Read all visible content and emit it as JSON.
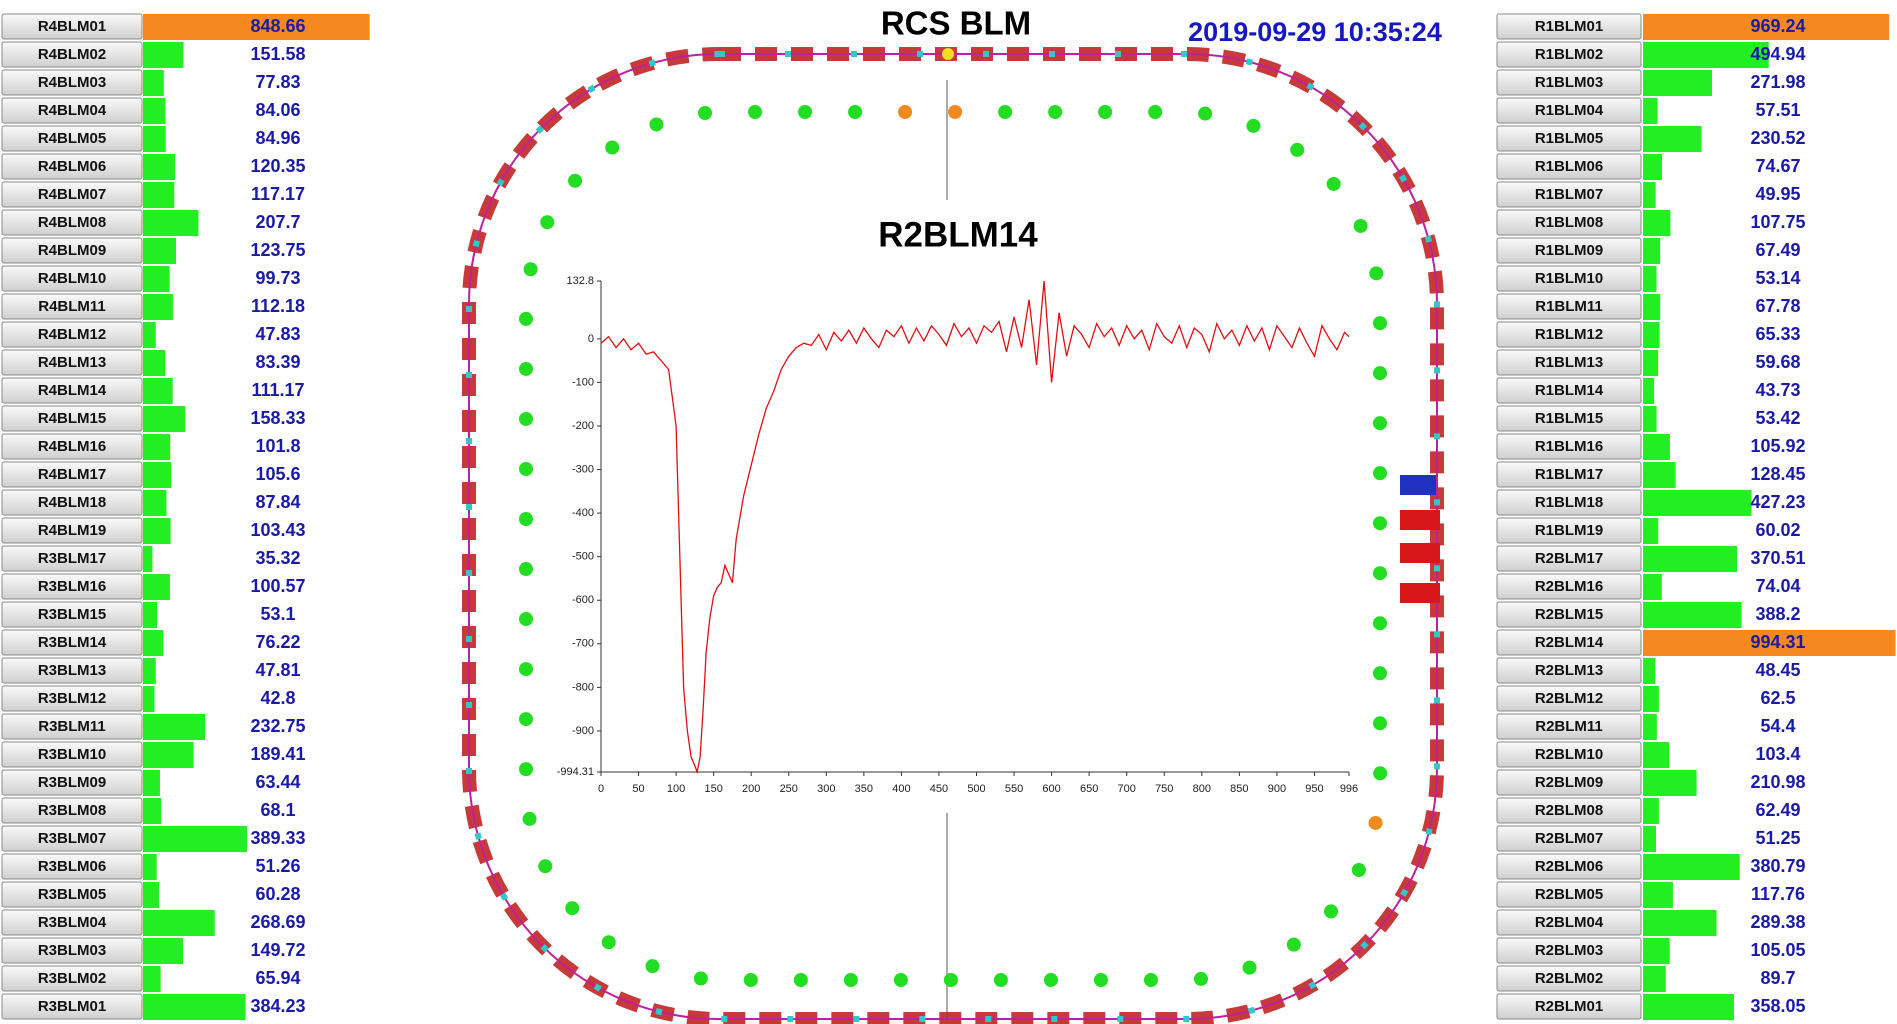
{
  "title": "RCS BLM",
  "timestamp": "2019-09-29 10:35:24",
  "panels": [
    {
      "xlim": [
        0,
        850
      ],
      "bar_color": "#22ee22",
      "alarm_color": "#f5891f",
      "alarm_rows": [
        0
      ],
      "rows": [
        {
          "name": "R4BLM01",
          "value": 848.66
        },
        {
          "name": "R4BLM02",
          "value": 151.58
        },
        {
          "name": "R4BLM03",
          "value": 77.83
        },
        {
          "name": "R4BLM04",
          "value": 84.06
        },
        {
          "name": "R4BLM05",
          "value": 84.96
        },
        {
          "name": "R4BLM06",
          "value": 120.35
        },
        {
          "name": "R4BLM07",
          "value": 117.17
        },
        {
          "name": "R4BLM08",
          "value": 207.7
        },
        {
          "name": "R4BLM09",
          "value": 123.75
        },
        {
          "name": "R4BLM10",
          "value": 99.73
        },
        {
          "name": "R4BLM11",
          "value": 112.18
        },
        {
          "name": "R4BLM12",
          "value": 47.83
        },
        {
          "name": "R4BLM13",
          "value": 83.39
        },
        {
          "name": "R4BLM14",
          "value": 111.17
        },
        {
          "name": "R4BLM15",
          "value": 158.33
        },
        {
          "name": "R4BLM16",
          "value": 101.8
        },
        {
          "name": "R4BLM17",
          "value": 105.6
        },
        {
          "name": "R4BLM18",
          "value": 87.84
        },
        {
          "name": "R4BLM19",
          "value": 103.43
        },
        {
          "name": "R3BLM17",
          "value": 35.32
        },
        {
          "name": "R3BLM16",
          "value": 100.57
        },
        {
          "name": "R3BLM15",
          "value": 53.1
        },
        {
          "name": "R3BLM14",
          "value": 76.22
        },
        {
          "name": "R3BLM13",
          "value": 47.81
        },
        {
          "name": "R3BLM12",
          "value": 42.8
        },
        {
          "name": "R3BLM11",
          "value": 232.75
        },
        {
          "name": "R3BLM10",
          "value": 189.41
        },
        {
          "name": "R3BLM09",
          "value": 63.44
        },
        {
          "name": "R3BLM08",
          "value": 68.1
        },
        {
          "name": "R3BLM07",
          "value": 389.33
        },
        {
          "name": "R3BLM06",
          "value": 51.26
        },
        {
          "name": "R3BLM05",
          "value": 60.28
        },
        {
          "name": "R3BLM04",
          "value": 268.69
        },
        {
          "name": "R3BLM03",
          "value": 149.72
        },
        {
          "name": "R3BLM02",
          "value": 65.94
        },
        {
          "name": "R3BLM01",
          "value": 384.23
        }
      ]
    },
    {
      "xlim": [
        0,
        1000
      ],
      "bar_color": "#22ee22",
      "alarm_color": "#f5891f",
      "alarm_rows": [
        0,
        22
      ],
      "rows": [
        {
          "name": "R1BLM01",
          "value": 969.24
        },
        {
          "name": "R1BLM02",
          "value": 494.94
        },
        {
          "name": "R1BLM03",
          "value": 271.98
        },
        {
          "name": "R1BLM04",
          "value": 57.51
        },
        {
          "name": "R1BLM05",
          "value": 230.52
        },
        {
          "name": "R1BLM06",
          "value": 74.67
        },
        {
          "name": "R1BLM07",
          "value": 49.95
        },
        {
          "name": "R1BLM08",
          "value": 107.75
        },
        {
          "name": "R1BLM09",
          "value": 67.49
        },
        {
          "name": "R1BLM10",
          "value": 53.14
        },
        {
          "name": "R1BLM11",
          "value": 67.78
        },
        {
          "name": "R1BLM12",
          "value": 65.33
        },
        {
          "name": "R1BLM13",
          "value": 59.68
        },
        {
          "name": "R1BLM14",
          "value": 43.73
        },
        {
          "name": "R1BLM15",
          "value": 53.42
        },
        {
          "name": "R1BLM16",
          "value": 105.92
        },
        {
          "name": "R1BLM17",
          "value": 128.45
        },
        {
          "name": "R1BLM18",
          "value": 427.23
        },
        {
          "name": "R1BLM19",
          "value": 60.02
        },
        {
          "name": "R2BLM17",
          "value": 370.51
        },
        {
          "name": "R2BLM16",
          "value": 74.04
        },
        {
          "name": "R2BLM15",
          "value": 388.2
        },
        {
          "name": "R2BLM14",
          "value": 994.31
        },
        {
          "name": "R2BLM13",
          "value": 48.45
        },
        {
          "name": "R2BLM12",
          "value": 62.5
        },
        {
          "name": "R2BLM11",
          "value": 54.4
        },
        {
          "name": "R2BLM10",
          "value": 103.4
        },
        {
          "name": "R2BLM09",
          "value": 210.98
        },
        {
          "name": "R2BLM08",
          "value": 62.49
        },
        {
          "name": "R2BLM07",
          "value": 51.25
        },
        {
          "name": "R2BLM06",
          "value": 380.79
        },
        {
          "name": "R2BLM05",
          "value": 117.76
        },
        {
          "name": "R2BLM04",
          "value": 289.38
        },
        {
          "name": "R2BLM03",
          "value": 105.05
        },
        {
          "name": "R2BLM02",
          "value": 89.7
        },
        {
          "name": "R2BLM01",
          "value": 358.05
        }
      ]
    }
  ],
  "chart_data": {
    "type": "line",
    "title": "R2BLM14",
    "x": [
      0,
      10,
      20,
      30,
      40,
      50,
      60,
      70,
      80,
      90,
      100,
      105,
      110,
      115,
      120,
      125,
      128,
      132,
      136,
      140,
      145,
      150,
      155,
      160,
      165,
      170,
      175,
      180,
      190,
      200,
      210,
      220,
      230,
      240,
      250,
      260,
      270,
      280,
      290,
      300,
      310,
      320,
      330,
      340,
      350,
      360,
      370,
      380,
      390,
      400,
      410,
      420,
      430,
      440,
      450,
      460,
      470,
      480,
      490,
      500,
      510,
      520,
      530,
      540,
      550,
      560,
      570,
      580,
      590,
      600,
      610,
      620,
      630,
      640,
      650,
      660,
      670,
      680,
      690,
      700,
      710,
      720,
      730,
      740,
      750,
      760,
      770,
      780,
      790,
      800,
      810,
      820,
      830,
      840,
      850,
      860,
      870,
      880,
      890,
      900,
      910,
      920,
      930,
      940,
      950,
      960,
      970,
      980,
      990,
      996
    ],
    "series": [
      {
        "color": "#e01010",
        "values": [
          -10,
          5,
          -20,
          0,
          -25,
          -10,
          -35,
          -30,
          -50,
          -70,
          -200,
          -500,
          -800,
          -900,
          -960,
          -980,
          -994.31,
          -960,
          -850,
          -720,
          -640,
          -590,
          -570,
          -560,
          -520,
          -540,
          -560,
          -460,
          -360,
          -290,
          -220,
          -160,
          -120,
          -70,
          -40,
          -20,
          -10,
          -15,
          10,
          -25,
          15,
          -5,
          20,
          -10,
          25,
          0,
          -20,
          20,
          5,
          30,
          -10,
          25,
          -5,
          30,
          10,
          -15,
          35,
          5,
          25,
          -10,
          30,
          15,
          40,
          -30,
          50,
          -20,
          90,
          -60,
          132.8,
          -100,
          60,
          -40,
          30,
          10,
          -20,
          35,
          5,
          25,
          -15,
          30,
          0,
          20,
          -25,
          35,
          5,
          -10,
          30,
          -20,
          25,
          10,
          -30,
          35,
          0,
          20,
          -15,
          30,
          -5,
          25,
          -25,
          30,
          5,
          -20,
          25,
          -10,
          -40,
          30,
          0,
          -25,
          15,
          5
        ]
      }
    ],
    "xlim": [
      0,
      996
    ],
    "ylim": [
      -994.31,
      132.8
    ],
    "xticks": [
      0,
      50,
      100,
      150,
      200,
      250,
      300,
      350,
      400,
      450,
      500,
      550,
      600,
      650,
      700,
      750,
      800,
      850,
      900,
      950,
      996
    ],
    "yticks": [
      132.8,
      0,
      -100,
      -200,
      -300,
      -400,
      -500,
      -600,
      -700,
      -800,
      -900,
      -994.31
    ]
  }
}
